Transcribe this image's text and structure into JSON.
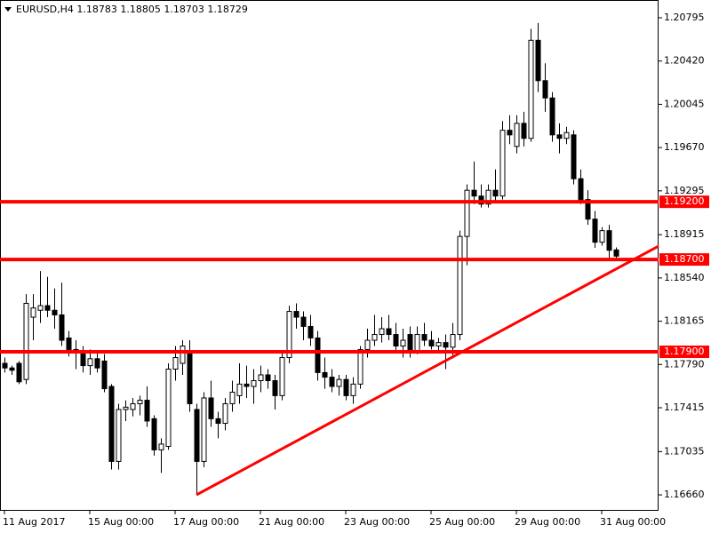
{
  "chart_data": {
    "type": "candlestick",
    "title": "EURUSD,H4  1.18783 1.18805 1.18703 1.18729",
    "categories": [
      "11 Aug 2017",
      null,
      null,
      null,
      null,
      null,
      null,
      null,
      null,
      null,
      null,
      null,
      "15 Aug 00:00",
      null,
      null,
      null,
      null,
      null,
      null,
      null,
      null,
      null,
      null,
      null,
      "17 Aug 00:00",
      null,
      null,
      null,
      null,
      null,
      null,
      null,
      null,
      null,
      null,
      null,
      "21 Aug 00:00",
      null,
      null,
      null,
      null,
      null,
      null,
      null,
      null,
      null,
      null,
      null,
      "23 Aug 00:00",
      null,
      null,
      null,
      null,
      null,
      null,
      null,
      null,
      null,
      null,
      null,
      "25 Aug 00:00",
      null,
      null,
      null,
      null,
      null,
      null,
      null,
      null,
      null,
      null,
      null,
      "29 Aug 00:00",
      null,
      null,
      null,
      null,
      null,
      null,
      null,
      null,
      null,
      null,
      null,
      "31 Aug 00:00",
      null,
      null
    ],
    "open": [
      1.178,
      1.1776,
      1.178,
      1.1766,
      1.182,
      1.1826,
      1.183,
      1.1826,
      1.1822,
      1.1802,
      1.1792,
      1.179,
      1.1778,
      1.1784,
      1.1782,
      1.176,
      1.1695,
      1.174,
      1.174,
      1.1745,
      1.1748,
      1.1732,
      1.1705,
      1.1708,
      1.1775,
      1.178,
      1.179,
      1.174,
      1.1695,
      1.175,
      1.1732,
      1.1728,
      1.1745,
      1.1752,
      1.1762,
      1.176,
      1.1765,
      1.177,
      1.1765,
      1.1752,
      1.1785,
      1.1825,
      1.182,
      1.1812,
      1.1802,
      1.1772,
      1.1768,
      1.176,
      1.1766,
      1.1752,
      1.1762,
      1.1792,
      1.18,
      1.1805,
      1.181,
      1.1805,
      1.1795,
      1.1805,
      1.179,
      1.1805,
      1.18,
      1.1795,
      1.1798,
      1.1794,
      1.1805,
      1.189,
      1.193,
      1.1925,
      1.1918,
      1.193,
      1.1925,
      1.1982,
      1.1968,
      1.1988,
      1.1975,
      1.206,
      1.2025,
      1.201,
      1.1978,
      1.1975,
      1.1978,
      1.194,
      1.1922,
      1.1905,
      1.1885,
      1.1895,
      1.18783
    ],
    "high": [
      1.1785,
      1.1778,
      1.1782,
      1.184,
      1.184,
      1.186,
      1.1855,
      1.1845,
      1.185,
      1.1808,
      1.18,
      1.1795,
      1.1792,
      1.179,
      1.1788,
      1.1762,
      1.1745,
      1.1748,
      1.175,
      1.1752,
      1.176,
      1.1735,
      1.1715,
      1.178,
      1.1795,
      1.18,
      1.18,
      1.1745,
      1.1755,
      1.1765,
      1.1738,
      1.175,
      1.1765,
      1.178,
      1.1778,
      1.1775,
      1.1778,
      1.1775,
      1.177,
      1.179,
      1.183,
      1.1832,
      1.1825,
      1.1822,
      1.1808,
      1.1785,
      1.1775,
      1.177,
      1.177,
      1.1768,
      1.1795,
      1.181,
      1.1822,
      1.182,
      1.1822,
      1.1815,
      1.181,
      1.1812,
      1.1812,
      1.1815,
      1.1808,
      1.1802,
      1.1805,
      1.1815,
      1.1895,
      1.1935,
      1.1955,
      1.1935,
      1.1935,
      1.1948,
      1.199,
      1.1995,
      1.1995,
      1.1998,
      1.207,
      1.2075,
      1.204,
      1.2015,
      1.1988,
      1.1985,
      1.1982,
      1.1948,
      1.193,
      1.1912,
      1.1898,
      1.19,
      1.18805
    ],
    "low": [
      1.1772,
      1.177,
      1.1762,
      1.1762,
      1.18,
      1.1815,
      1.182,
      1.181,
      1.1795,
      1.1786,
      1.1775,
      1.1772,
      1.177,
      1.1772,
      1.1755,
      1.1688,
      1.1688,
      1.173,
      1.1734,
      1.1735,
      1.1725,
      1.17,
      1.1685,
      1.1705,
      1.1765,
      1.177,
      1.1738,
      1.1666,
      1.169,
      1.1725,
      1.1715,
      1.1722,
      1.1738,
      1.1745,
      1.175,
      1.1745,
      1.1755,
      1.1758,
      1.174,
      1.1748,
      1.178,
      1.181,
      1.18,
      1.1795,
      1.1765,
      1.1758,
      1.1755,
      1.1752,
      1.1748,
      1.1745,
      1.1758,
      1.1785,
      1.1795,
      1.1798,
      1.18,
      1.179,
      1.1785,
      1.1785,
      1.1788,
      1.1795,
      1.1792,
      1.179,
      1.1775,
      1.1785,
      1.18,
      1.1865,
      1.1918,
      1.1915,
      1.1915,
      1.192,
      1.1922,
      1.197,
      1.1962,
      1.1968,
      1.1972,
      1.2015,
      1.1998,
      1.1972,
      1.1962,
      1.197,
      1.1935,
      1.1918,
      1.19,
      1.188,
      1.1882,
      1.187,
      1.18703
    ],
    "close": [
      1.1776,
      1.1774,
      1.1764,
      1.1832,
      1.1828,
      1.183,
      1.1826,
      1.1822,
      1.18,
      1.1792,
      1.179,
      1.1778,
      1.1784,
      1.1776,
      1.1758,
      1.1695,
      1.174,
      1.1742,
      1.1745,
      1.1748,
      1.173,
      1.1705,
      1.171,
      1.1775,
      1.1785,
      1.1795,
      1.1745,
      1.1695,
      1.175,
      1.1732,
      1.1728,
      1.1745,
      1.1755,
      1.1762,
      1.176,
      1.1765,
      1.177,
      1.1765,
      1.1752,
      1.1785,
      1.1825,
      1.182,
      1.1812,
      1.1802,
      1.1772,
      1.1768,
      1.176,
      1.1766,
      1.1752,
      1.1762,
      1.1792,
      1.18,
      1.1805,
      1.181,
      1.1805,
      1.1795,
      1.18,
      1.179,
      1.1805,
      1.18,
      1.1795,
      1.1798,
      1.1794,
      1.1805,
      1.189,
      1.193,
      1.1925,
      1.1918,
      1.193,
      1.1925,
      1.1982,
      1.1978,
      1.1988,
      1.1975,
      1.206,
      1.2025,
      1.201,
      1.1978,
      1.1975,
      1.198,
      1.194,
      1.192,
      1.1905,
      1.1885,
      1.1895,
      1.1878,
      1.18729
    ],
    "ylim": [
      1.16522,
      1.20949
    ],
    "yticks": [
      {
        "value": 1.20795,
        "label": "1.20795"
      },
      {
        "value": 1.2042,
        "label": "1.20420"
      },
      {
        "value": 1.20045,
        "label": "1.20045"
      },
      {
        "value": 1.1967,
        "label": "1.19670"
      },
      {
        "value": 1.19295,
        "label": "1.19295"
      },
      {
        "value": 1.18915,
        "label": "1.18915"
      },
      {
        "value": 1.1854,
        "label": "1.18540"
      },
      {
        "value": 1.18165,
        "label": "1.18165"
      },
      {
        "value": 1.1779,
        "label": "1.17790"
      },
      {
        "value": 1.17415,
        "label": "1.17415"
      },
      {
        "value": 1.17035,
        "label": "1.17035"
      },
      {
        "value": 1.1666,
        "label": "1.16660"
      }
    ],
    "levels": [
      {
        "value": 1.192,
        "label": "1.19200"
      },
      {
        "value": 1.187,
        "label": "1.18700"
      },
      {
        "value": 1.179,
        "label": "1.17900"
      }
    ],
    "level_color": "#ff0000",
    "trendline": {
      "x": [
        27,
        92
      ],
      "values": [
        1.1666,
        1.18816
      ]
    },
    "grid": false
  }
}
